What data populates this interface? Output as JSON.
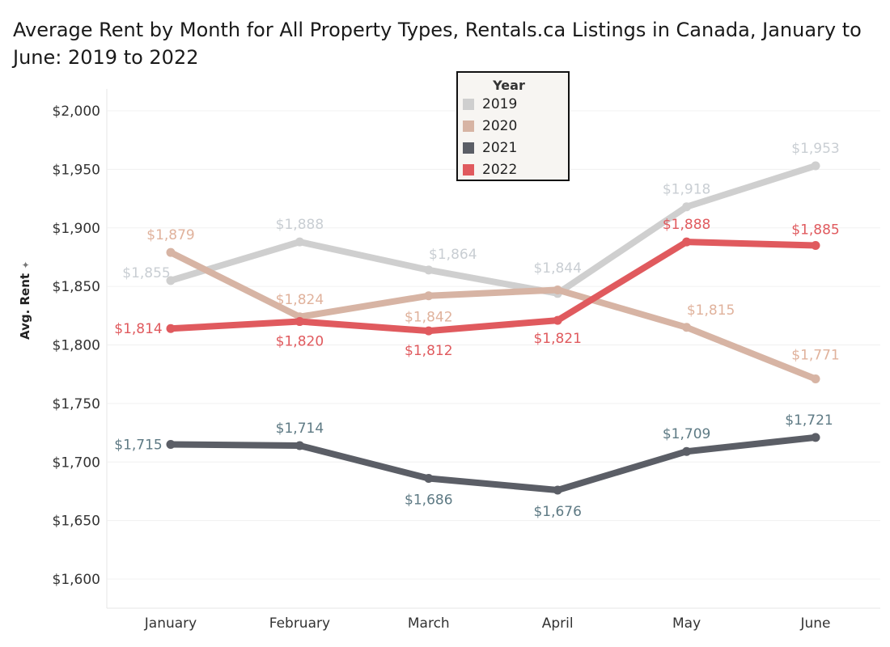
{
  "title": "Average Rent by Month for All Property Types, Rentals.ca Listings in Canada, January to June: 2019 to 2022",
  "chart_data": {
    "type": "line",
    "title": "Average Rent by Month for All Property Types, Rentals.ca Listings in Canada, January to June: 2019 to 2022",
    "xlabel": "",
    "ylabel": "Avg. Rent",
    "ylim": [
      1575,
      2025
    ],
    "yticks": [
      "$1,600",
      "$1,650",
      "$1,700",
      "$1,750",
      "$1,800",
      "$1,850",
      "$1,900",
      "$1,950",
      "$2,000"
    ],
    "ytick_values": [
      1600,
      1650,
      1700,
      1750,
      1800,
      1850,
      1900,
      1950,
      2000
    ],
    "categories": [
      "January",
      "February",
      "March",
      "April",
      "May",
      "June"
    ],
    "grid": true,
    "legend": {
      "title": "Year",
      "placement": "top-center"
    },
    "series": [
      {
        "name": "2019",
        "color": "#cfcfcf",
        "label_color": "#c9ced3",
        "values": [
          1855,
          1888,
          1864,
          1844,
          1918,
          1953
        ],
        "labels": [
          "$1,855",
          "$1,888",
          "$1,864",
          "$1,844",
          "$1,918",
          "$1,953"
        ]
      },
      {
        "name": "2020",
        "color": "#d7b4a4",
        "label_color": "#e0b29c",
        "values": [
          1879,
          1824,
          1842,
          1847,
          1815,
          1771
        ],
        "labels": [
          "$1,879",
          "$1,824",
          "$1,842",
          null,
          "$1,815",
          "$1,771"
        ]
      },
      {
        "name": "2021",
        "color": "#5b5e66",
        "label_color": "#5e7a84",
        "values": [
          1715,
          1714,
          1686,
          1676,
          1709,
          1721
        ],
        "labels": [
          "$1,715",
          "$1,714",
          "$1,686",
          "$1,676",
          "$1,709",
          "$1,721"
        ]
      },
      {
        "name": "2022",
        "color": "#e05a5e",
        "label_color": "#e05a5e",
        "values": [
          1814,
          1820,
          1812,
          1821,
          1888,
          1885
        ],
        "labels": [
          "$1,814",
          "$1,820",
          "$1,812",
          "$1,821",
          "$1,888",
          "$1,885"
        ]
      }
    ]
  }
}
